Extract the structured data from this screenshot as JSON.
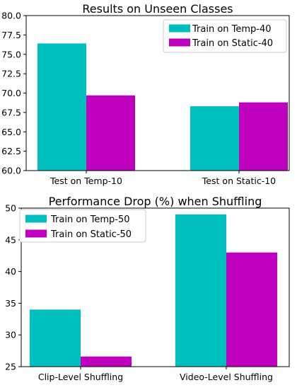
{
  "chart_data": [
    {
      "type": "bar",
      "title": "Results on Unseen Classes",
      "xlabel": "",
      "ylabel": "",
      "categories": [
        "Test on Temp-10",
        "Test on Static-10"
      ],
      "series": [
        {
          "name": "Train on Temp-40",
          "values": [
            76.4,
            68.3
          ],
          "color": "#00bfbf"
        },
        {
          "name": "Train on Static-40",
          "values": [
            69.7,
            68.8
          ],
          "color": "#bf00bf"
        }
      ],
      "ylim": [
        60,
        80
      ],
      "yticks": [
        "60.0",
        "62.5",
        "65.0",
        "67.5",
        "70.0",
        "72.5",
        "75.0",
        "77.5",
        "80.0"
      ],
      "legend": "top-right",
      "grid": false
    },
    {
      "type": "bar",
      "title": "Performance Drop (%) when Shuffling",
      "xlabel": "",
      "ylabel": "",
      "categories": [
        "Clip-Level Shuffling",
        "Video-Level Shuffling"
      ],
      "series": [
        {
          "name": "Train on Temp-50",
          "values": [
            34.0,
            49.0
          ],
          "color": "#00bfbf"
        },
        {
          "name": "Train on Static-50",
          "values": [
            26.6,
            43.0
          ],
          "color": "#bf00bf"
        }
      ],
      "ylim": [
        25,
        50
      ],
      "yticks": [
        "25",
        "30",
        "35",
        "40",
        "45",
        "50"
      ],
      "legend": "top-left",
      "grid": false
    }
  ]
}
